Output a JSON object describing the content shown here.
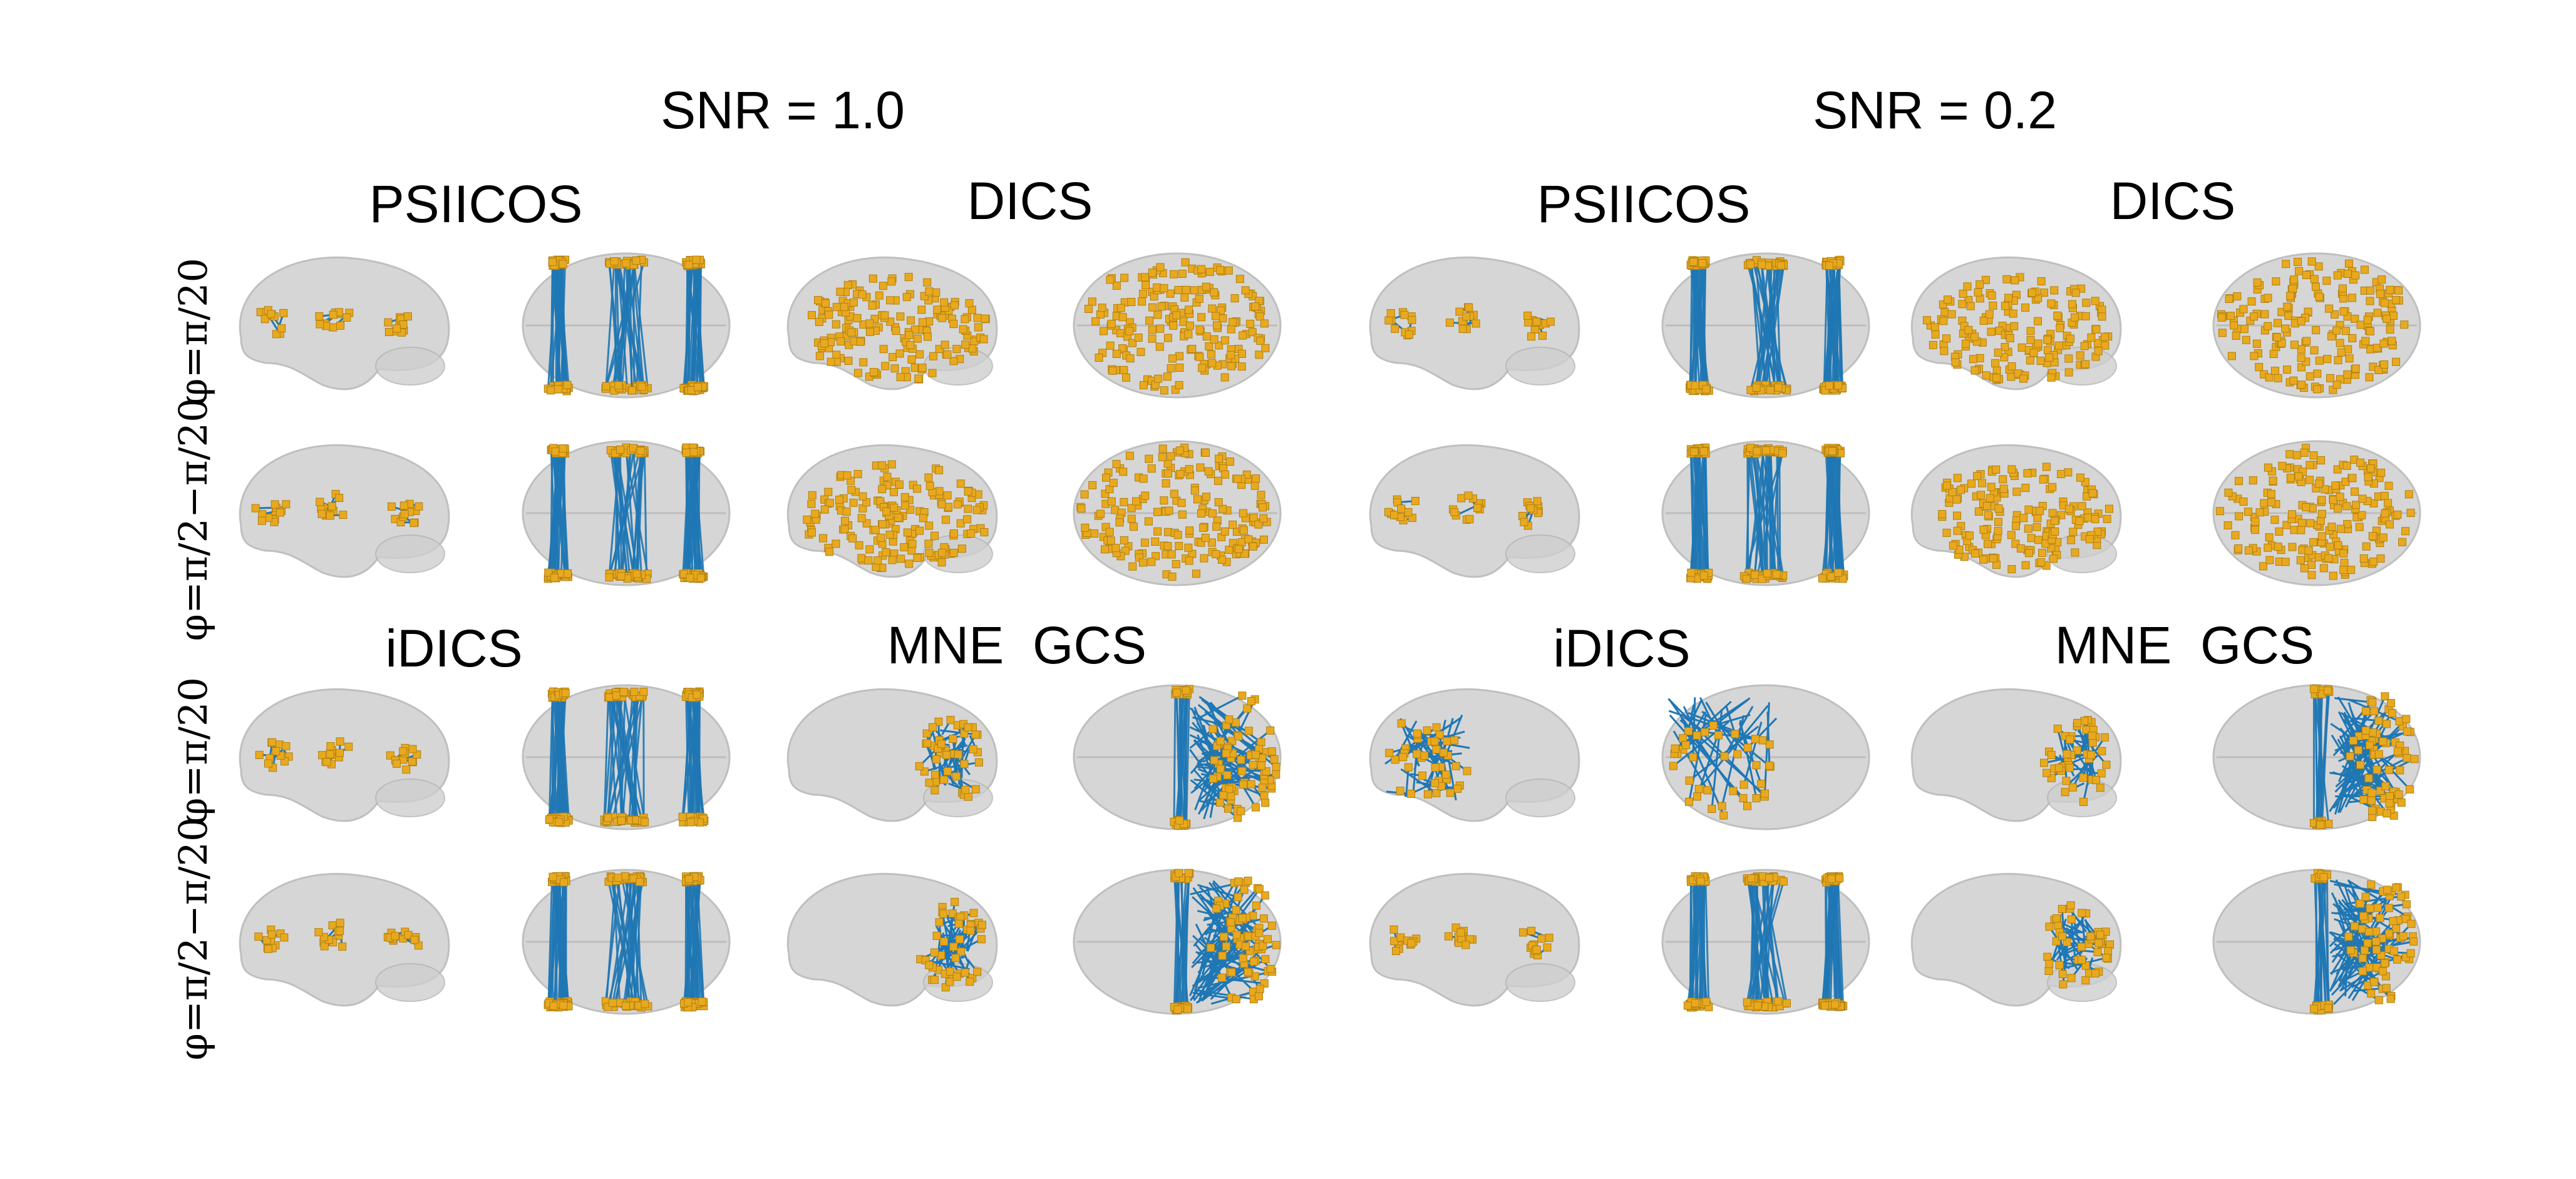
{
  "snr_titles": [
    "SNR = 1.0",
    "SNR = 0.2"
  ],
  "method_titles": {
    "psiicos": "PSIICOS",
    "dics": "DICS",
    "idics": "iDICS",
    "mne": "MNE",
    "gcs": "GCS"
  },
  "row_labels": {
    "phi_small": "φ=π/20",
    "phi_large": "φ=π/2−π/20"
  },
  "colors": {
    "brain": "#cfcfcf",
    "brain_edge": "#b4b4b4",
    "connection": "#1f77b4",
    "node": "#e8a91f",
    "node_edge": "#b07f10"
  }
}
